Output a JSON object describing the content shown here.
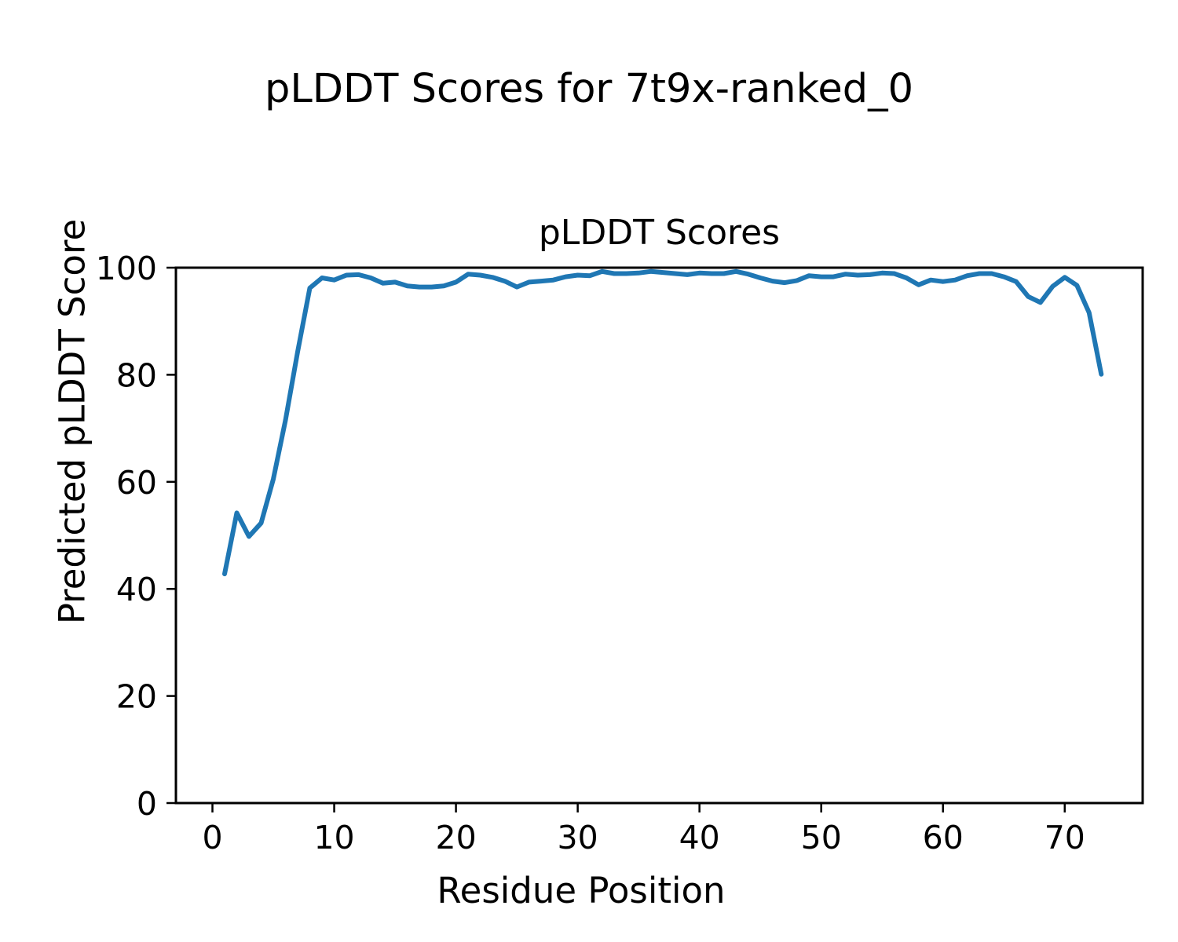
{
  "figure": {
    "suptitle": "pLDDT Scores for 7t9x-ranked_0",
    "axes_title": "pLDDT Scores",
    "xlabel": "Residue Position",
    "ylabel": "Predicted pLDDT Score"
  },
  "chart_data": {
    "type": "line",
    "title": "pLDDT Scores",
    "xlabel": "Residue Position",
    "ylabel": "Predicted pLDDT Score",
    "series_name": "pLDDT score per residue",
    "series_color": "#1f77b4",
    "background_color": "#ffffff",
    "axis_color": "#000000",
    "grid": false,
    "legend": false,
    "xlim": [
      -3,
      76.4
    ],
    "ylim": [
      0,
      100
    ],
    "xticks": [
      0,
      10,
      20,
      30,
      40,
      50,
      60,
      70
    ],
    "yticks": [
      0,
      20,
      40,
      60,
      80,
      100
    ],
    "x": [
      1,
      2,
      3,
      4,
      5,
      6,
      7,
      8,
      9,
      10,
      11,
      12,
      13,
      14,
      15,
      16,
      17,
      18,
      19,
      20,
      21,
      22,
      23,
      24,
      25,
      26,
      27,
      28,
      29,
      30,
      31,
      32,
      33,
      34,
      35,
      36,
      37,
      38,
      39,
      40,
      41,
      42,
      43,
      44,
      45,
      46,
      47,
      48,
      49,
      50,
      51,
      52,
      53,
      54,
      55,
      56,
      57,
      58,
      59,
      60,
      61,
      62,
      63,
      64,
      65,
      66,
      67,
      68,
      69,
      70,
      71,
      72,
      73
    ],
    "values": [
      42.8,
      54.2,
      49.8,
      52.3,
      60.5,
      71.5,
      84.3,
      96.2,
      98.1,
      97.7,
      98.6,
      98.7,
      98.1,
      97.1,
      97.3,
      96.6,
      96.4,
      96.4,
      96.6,
      97.3,
      98.8,
      98.6,
      98.2,
      97.5,
      96.4,
      97.3,
      97.5,
      97.7,
      98.3,
      98.6,
      98.5,
      99.3,
      98.9,
      98.9,
      99.0,
      99.3,
      99.1,
      98.9,
      98.7,
      99.0,
      98.9,
      98.9,
      99.3,
      98.8,
      98.1,
      97.5,
      97.2,
      97.6,
      98.5,
      98.3,
      98.3,
      98.8,
      98.6,
      98.7,
      99.0,
      98.9,
      98.1,
      96.8,
      97.7,
      97.4,
      97.7,
      98.5,
      98.9,
      98.9,
      98.3,
      97.4,
      94.6,
      93.5,
      96.5,
      98.2,
      96.7,
      91.6,
      80.1
    ]
  }
}
